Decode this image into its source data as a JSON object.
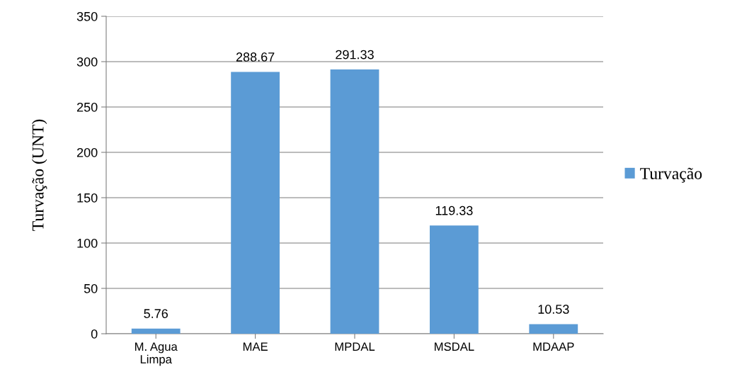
{
  "chart_data": {
    "type": "bar",
    "ylabel": "Turvação (UNT)",
    "categories": [
      "M. Agua\nLimpa",
      "MAE",
      "MPDAL",
      "MSDAL",
      "MDAAP"
    ],
    "series": [
      {
        "name": "Turvação",
        "color": "#5b9bd5",
        "values": [
          5.76,
          288.67,
          291.33,
          119.33,
          10.53
        ]
      }
    ],
    "ylim": [
      0,
      350
    ],
    "yticks": [
      0,
      50,
      100,
      150,
      200,
      250,
      300,
      350
    ],
    "grid": "y",
    "legend": "right",
    "data_labels": true
  }
}
